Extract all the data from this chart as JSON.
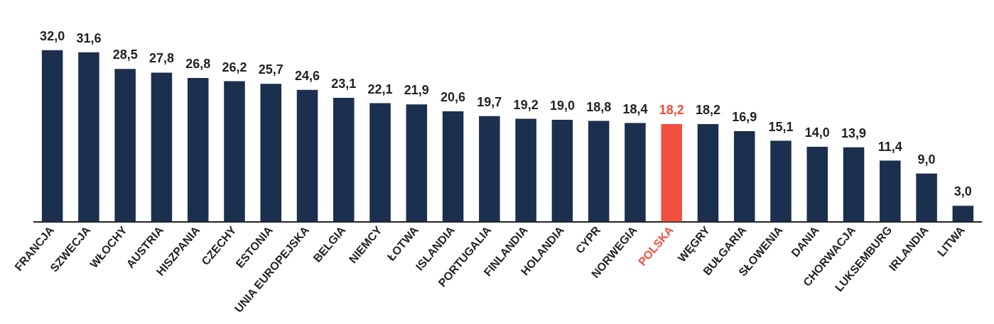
{
  "chart_data": {
    "type": "bar",
    "tick_labels": "x",
    "grid": false,
    "legend": false,
    "categories": [
      "FRANCJA",
      "SZWECJA",
      "WŁOCHY",
      "AUSTRIA",
      "HISZPANIA",
      "CZECHY",
      "ESTONIA",
      "UNIA EUROPEJSKA",
      "BELGIA",
      "NIEMCY",
      "ŁOTWA",
      "ISLANDIA",
      "PORTUGALIA",
      "FINLANDIA",
      "HOLANDIA",
      "CYPR",
      "NORWEGIA",
      "POLSKA",
      "WĘGRY",
      "BUŁGARIA",
      "SŁOWENIA",
      "DANIA",
      "CHORWACJA",
      "LUKSEMBURG",
      "IRLANDIA",
      "LITWA"
    ],
    "values": [
      32.0,
      31.6,
      28.5,
      27.8,
      26.8,
      26.2,
      25.7,
      24.6,
      23.1,
      22.1,
      21.9,
      20.6,
      19.7,
      19.2,
      19.0,
      18.8,
      18.4,
      18.2,
      18.2,
      16.9,
      15.1,
      14.0,
      13.9,
      11.4,
      9.0,
      3.0
    ],
    "value_labels": [
      "32,0",
      "31,6",
      "28,5",
      "27,8",
      "26,8",
      "26,2",
      "25,7",
      "24,6",
      "23,1",
      "22,1",
      "21,9",
      "20,6",
      "19,7",
      "19,2",
      "19,0",
      "18,8",
      "18,4",
      "18,2",
      "18,2",
      "16,9",
      "15,1",
      "14,0",
      "13,9",
      "11,4",
      "9,0",
      "3,0"
    ],
    "colors": [
      "#1b2f4e",
      "#1b2f4e",
      "#1b2f4e",
      "#1b2f4e",
      "#1b2f4e",
      "#1b2f4e",
      "#1b2f4e",
      "#1b2f4e",
      "#1b2f4e",
      "#1b2f4e",
      "#1b2f4e",
      "#1b2f4e",
      "#1b2f4e",
      "#1b2f4e",
      "#1b2f4e",
      "#1b2f4e",
      "#1b2f4e",
      "#f04e3e",
      "#1b2f4e",
      "#1b2f4e",
      "#1b2f4e",
      "#1b2f4e",
      "#1b2f4e",
      "#1b2f4e",
      "#1b2f4e",
      "#1b2f4e"
    ]
  }
}
